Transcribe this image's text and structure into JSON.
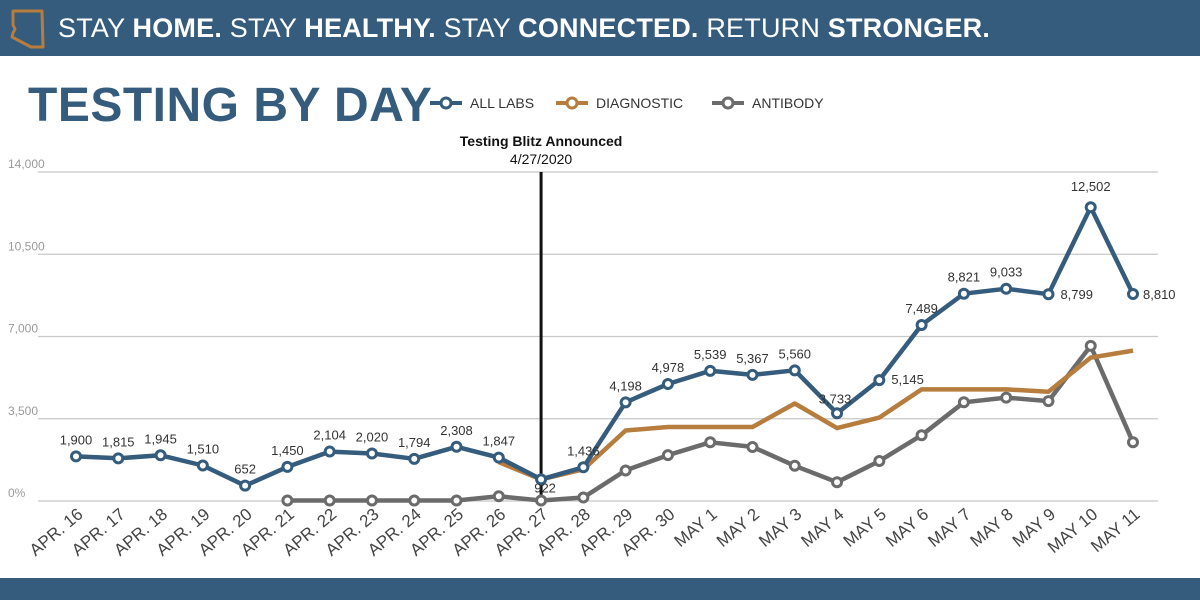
{
  "banner": {
    "segments": [
      {
        "text": "STAY ",
        "bold": false
      },
      {
        "text": "HOME.",
        "bold": true
      },
      {
        "text": " STAY ",
        "bold": false
      },
      {
        "text": "HEALTHY.",
        "bold": true
      },
      {
        "text": " STAY ",
        "bold": false
      },
      {
        "text": "CONNECTED.",
        "bold": true
      },
      {
        "text": " RETURN ",
        "bold": false
      },
      {
        "text": "STRONGER.",
        "bold": true
      }
    ]
  },
  "colors": {
    "banner": "#355c7d",
    "all_labs": "#355c7d",
    "diagnostic": "#b67d3e",
    "antibody": "#6b6b6b",
    "grid": "#c8c8c8"
  },
  "chart_data": {
    "type": "line",
    "title": "TESTING BY DAY",
    "categories": [
      "APR. 16",
      "APR. 17",
      "APR. 18",
      "APR. 19",
      "APR. 20",
      "APR. 21",
      "APR. 22",
      "APR. 23",
      "APR. 24",
      "APR. 25",
      "APR. 26",
      "APR. 27",
      "APR. 28",
      "APR. 29",
      "APR. 30",
      "MAY 1",
      "MAY 2",
      "MAY 3",
      "MAY 4",
      "MAY 5",
      "MAY 6",
      "MAY 7",
      "MAY 8",
      "MAY 9",
      "MAY 10",
      "MAY 11"
    ],
    "y_ticks": [
      {
        "value": 0,
        "label": "0%"
      },
      {
        "value": 3500,
        "label": "3,500"
      },
      {
        "value": 7000,
        "label": "7,000"
      },
      {
        "value": 10500,
        "label": "10,500"
      },
      {
        "value": 14000,
        "label": "14,000"
      }
    ],
    "ylim": [
      0,
      14000
    ],
    "legend_position": "top",
    "series": [
      {
        "name": "ALL LABS",
        "key": "all_labs",
        "values": [
          1900,
          1815,
          1945,
          1510,
          652,
          1450,
          2104,
          2020,
          1794,
          2308,
          1847,
          922,
          1436,
          4198,
          4978,
          5539,
          5367,
          5560,
          3733,
          5145,
          7489,
          8821,
          9033,
          8799,
          12502,
          8810
        ],
        "labels": [
          "1,900",
          "1,815",
          "1,945",
          "1,510",
          "652",
          "1,450",
          "2,104",
          "2,020",
          "1,794",
          "2,308",
          "1,847",
          "922",
          "1,436",
          "4,198",
          "4,978",
          "5,539",
          "5,367",
          "5,560",
          "3,733",
          "5,145",
          "7,489",
          "8,821",
          "9,033",
          "8,799",
          "12,502",
          "8,810"
        ]
      },
      {
        "name": "DIAGNOSTIC",
        "key": "diagnostic",
        "values": [
          null,
          null,
          null,
          null,
          null,
          null,
          null,
          null,
          null,
          null,
          1650,
          920,
          1350,
          3000,
          3150,
          3150,
          3150,
          4150,
          3100,
          3550,
          4750,
          4750,
          4750,
          4650,
          6100,
          6400
        ]
      },
      {
        "name": "ANTIBODY",
        "key": "antibody",
        "values": [
          null,
          null,
          null,
          null,
          null,
          20,
          20,
          20,
          20,
          20,
          200,
          20,
          150,
          1300,
          1950,
          2500,
          2300,
          1500,
          800,
          1700,
          2800,
          4200,
          4400,
          4250,
          6600,
          2500
        ]
      }
    ],
    "annotation": {
      "title": "Testing Blitz Announced",
      "subtitle": "4/27/2020",
      "category_index": 11
    }
  }
}
